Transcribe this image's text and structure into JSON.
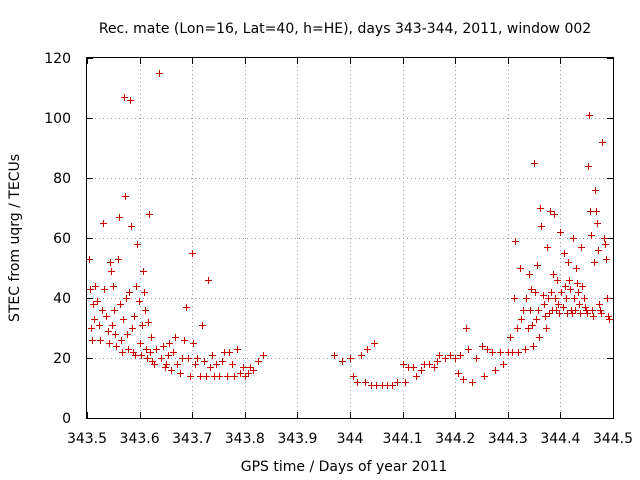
{
  "chart_data": {
    "type": "scatter",
    "title": "Rec. mate (Lon=16, Lat=40, h=HE), days 343-344, 2011, window 002",
    "xlabel": "GPS time / Days of year 2011",
    "ylabel": "STEC from uqrg / TECUs",
    "xlim": [
      343.5,
      344.5
    ],
    "ylim": [
      0,
      120
    ],
    "xticks": [
      343.5,
      343.6,
      343.7,
      343.8,
      343.9,
      344.0,
      344.1,
      344.2,
      344.3,
      344.4,
      344.5
    ],
    "xtick_labels": [
      "343.5",
      "343.6",
      "343.7",
      "343.8",
      "343.9",
      "344",
      "344.1",
      "344.2",
      "344.3",
      "344.4",
      "344.5"
    ],
    "yticks": [
      0,
      20,
      40,
      60,
      80,
      100,
      120
    ],
    "ytick_labels": [
      "0",
      "20",
      "40",
      "60",
      "80",
      "100",
      "120"
    ],
    "grid": true,
    "marker": "+",
    "color": "#cc0000",
    "series": [
      {
        "name": "STEC",
        "points": [
          [
            343.503,
            53
          ],
          [
            343.505,
            43
          ],
          [
            343.507,
            30
          ],
          [
            343.509,
            26
          ],
          [
            343.511,
            38
          ],
          [
            343.513,
            33
          ],
          [
            343.516,
            44
          ],
          [
            343.519,
            39
          ],
          [
            343.522,
            31
          ],
          [
            343.525,
            26
          ],
          [
            343.528,
            36
          ],
          [
            343.53,
            65
          ],
          [
            343.533,
            43
          ],
          [
            343.536,
            34
          ],
          [
            343.539,
            29
          ],
          [
            343.541,
            25
          ],
          [
            343.543,
            52
          ],
          [
            343.545,
            49
          ],
          [
            343.547,
            31
          ],
          [
            343.549,
            44
          ],
          [
            343.551,
            36
          ],
          [
            343.553,
            28
          ],
          [
            343.555,
            24
          ],
          [
            343.558,
            53
          ],
          [
            343.56,
            67
          ],
          [
            343.562,
            38
          ],
          [
            343.564,
            26
          ],
          [
            343.566,
            22
          ],
          [
            343.568,
            33
          ],
          [
            343.57,
            107
          ],
          [
            343.572,
            74
          ],
          [
            343.574,
            40
          ],
          [
            343.576,
            28
          ],
          [
            343.578,
            23
          ],
          [
            343.58,
            42
          ],
          [
            343.582,
            106
          ],
          [
            343.584,
            64
          ],
          [
            343.586,
            30
          ],
          [
            343.588,
            22
          ],
          [
            343.59,
            34
          ],
          [
            343.592,
            21
          ],
          [
            343.594,
            44
          ],
          [
            343.596,
            58
          ],
          [
            343.598,
            39
          ],
          [
            343.6,
            25
          ],
          [
            343.602,
            21
          ],
          [
            343.604,
            31
          ],
          [
            343.606,
            49
          ],
          [
            343.608,
            42
          ],
          [
            343.61,
            36
          ],
          [
            343.612,
            23
          ],
          [
            343.614,
            20
          ],
          [
            343.616,
            32
          ],
          [
            343.618,
            68
          ],
          [
            343.62,
            22
          ],
          [
            343.622,
            27
          ],
          [
            343.624,
            19
          ],
          [
            343.628,
            18
          ],
          [
            343.632,
            23
          ],
          [
            343.636,
            115
          ],
          [
            343.64,
            20
          ],
          [
            343.644,
            24
          ],
          [
            343.648,
            17
          ],
          [
            343.65,
            18
          ],
          [
            343.654,
            21
          ],
          [
            343.656,
            25
          ],
          [
            343.66,
            16
          ],
          [
            343.664,
            22
          ],
          [
            343.668,
            27
          ],
          [
            343.672,
            18
          ],
          [
            343.676,
            15
          ],
          [
            343.68,
            20
          ],
          [
            343.684,
            26
          ],
          [
            343.688,
            37
          ],
          [
            343.692,
            20
          ],
          [
            343.696,
            14
          ],
          [
            343.7,
            55
          ],
          [
            343.702,
            25
          ],
          [
            343.706,
            18
          ],
          [
            343.71,
            20
          ],
          [
            343.714,
            14
          ],
          [
            343.718,
            31
          ],
          [
            343.722,
            19
          ],
          [
            343.726,
            14
          ],
          [
            343.73,
            46
          ],
          [
            343.734,
            17
          ],
          [
            343.738,
            21
          ],
          [
            343.742,
            14
          ],
          [
            343.746,
            18
          ],
          [
            343.75,
            14
          ],
          [
            343.756,
            19
          ],
          [
            343.76,
            22
          ],
          [
            343.766,
            14
          ],
          [
            343.77,
            22
          ],
          [
            343.776,
            18
          ],
          [
            343.78,
            14
          ],
          [
            343.786,
            23
          ],
          [
            343.79,
            15
          ],
          [
            343.796,
            17
          ],
          [
            343.8,
            14
          ],
          [
            343.806,
            15
          ],
          [
            343.81,
            17
          ],
          [
            343.815,
            16
          ],
          [
            343.825,
            19
          ],
          [
            343.835,
            21
          ],
          [
            343.97,
            21
          ],
          [
            343.985,
            19
          ],
          [
            344.0,
            20
          ],
          [
            344.005,
            14
          ],
          [
            344.013,
            12
          ],
          [
            344.02,
            21
          ],
          [
            344.028,
            12
          ],
          [
            344.033,
            23
          ],
          [
            344.04,
            11
          ],
          [
            344.045,
            25
          ],
          [
            344.05,
            11
          ],
          [
            344.06,
            11
          ],
          [
            344.07,
            11
          ],
          [
            344.08,
            11
          ],
          [
            344.09,
            12
          ],
          [
            344.1,
            18
          ],
          [
            344.105,
            12
          ],
          [
            344.11,
            17
          ],
          [
            344.12,
            17
          ],
          [
            344.125,
            14
          ],
          [
            344.135,
            16
          ],
          [
            344.14,
            18
          ],
          [
            344.15,
            18
          ],
          [
            344.16,
            17
          ],
          [
            344.165,
            19
          ],
          [
            344.17,
            21
          ],
          [
            344.18,
            20
          ],
          [
            344.19,
            21
          ],
          [
            344.2,
            20
          ],
          [
            344.205,
            15
          ],
          [
            344.21,
            21
          ],
          [
            344.215,
            13
          ],
          [
            344.22,
            30
          ],
          [
            344.225,
            23
          ],
          [
            344.232,
            12
          ],
          [
            344.24,
            20
          ],
          [
            344.25,
            24
          ],
          [
            344.255,
            14
          ],
          [
            344.26,
            23
          ],
          [
            344.27,
            22
          ],
          [
            344.275,
            16
          ],
          [
            344.285,
            22
          ],
          [
            344.29,
            18
          ],
          [
            344.3,
            22
          ],
          [
            344.305,
            27
          ],
          [
            344.308,
            22
          ],
          [
            344.311,
            40
          ],
          [
            344.314,
            59
          ],
          [
            344.317,
            30
          ],
          [
            344.32,
            22
          ],
          [
            344.323,
            50
          ],
          [
            344.326,
            33
          ],
          [
            344.329,
            36
          ],
          [
            344.332,
            23
          ],
          [
            344.335,
            40
          ],
          [
            344.338,
            30
          ],
          [
            344.34,
            48
          ],
          [
            344.342,
            36
          ],
          [
            344.344,
            43
          ],
          [
            344.346,
            31
          ],
          [
            344.348,
            24
          ],
          [
            344.35,
            85
          ],
          [
            344.352,
            42
          ],
          [
            344.354,
            33
          ],
          [
            344.356,
            51
          ],
          [
            344.358,
            36
          ],
          [
            344.36,
            27
          ],
          [
            344.362,
            70
          ],
          [
            344.364,
            64
          ],
          [
            344.366,
            41
          ],
          [
            344.368,
            38
          ],
          [
            344.37,
            34
          ],
          [
            344.372,
            30
          ],
          [
            344.374,
            57
          ],
          [
            344.376,
            40
          ],
          [
            344.378,
            35
          ],
          [
            344.38,
            69
          ],
          [
            344.382,
            42
          ],
          [
            344.384,
            36
          ],
          [
            344.386,
            48
          ],
          [
            344.388,
            68
          ],
          [
            344.39,
            40
          ],
          [
            344.392,
            36
          ],
          [
            344.394,
            46
          ],
          [
            344.396,
            38
          ],
          [
            344.398,
            35
          ],
          [
            344.4,
            62
          ],
          [
            344.402,
            42
          ],
          [
            344.404,
            37
          ],
          [
            344.406,
            55
          ],
          [
            344.408,
            44
          ],
          [
            344.41,
            40
          ],
          [
            344.412,
            35
          ],
          [
            344.414,
            52
          ],
          [
            344.416,
            46
          ],
          [
            344.418,
            43
          ],
          [
            344.42,
            36
          ],
          [
            344.422,
            35
          ],
          [
            344.424,
            60
          ],
          [
            344.426,
            40
          ],
          [
            344.428,
            36
          ],
          [
            344.43,
            50
          ],
          [
            344.432,
            45
          ],
          [
            344.434,
            42
          ],
          [
            344.436,
            38
          ],
          [
            344.438,
            35
          ],
          [
            344.44,
            57
          ],
          [
            344.442,
            44
          ],
          [
            344.444,
            40
          ],
          [
            344.446,
            37
          ],
          [
            344.448,
            36
          ],
          [
            344.45,
            35
          ],
          [
            344.452,
            84
          ],
          [
            344.454,
            101
          ],
          [
            344.456,
            69
          ],
          [
            344.458,
            61
          ],
          [
            344.46,
            36
          ],
          [
            344.462,
            34
          ],
          [
            344.464,
            52
          ],
          [
            344.466,
            76
          ],
          [
            344.468,
            69
          ],
          [
            344.47,
            65
          ],
          [
            344.472,
            56
          ],
          [
            344.474,
            38
          ],
          [
            344.476,
            36
          ],
          [
            344.478,
            35
          ],
          [
            344.48,
            92
          ],
          [
            344.482,
            60
          ],
          [
            344.484,
            58
          ],
          [
            344.486,
            53
          ],
          [
            344.488,
            40
          ],
          [
            344.49,
            34
          ],
          [
            344.492,
            33
          ]
        ]
      }
    ]
  }
}
